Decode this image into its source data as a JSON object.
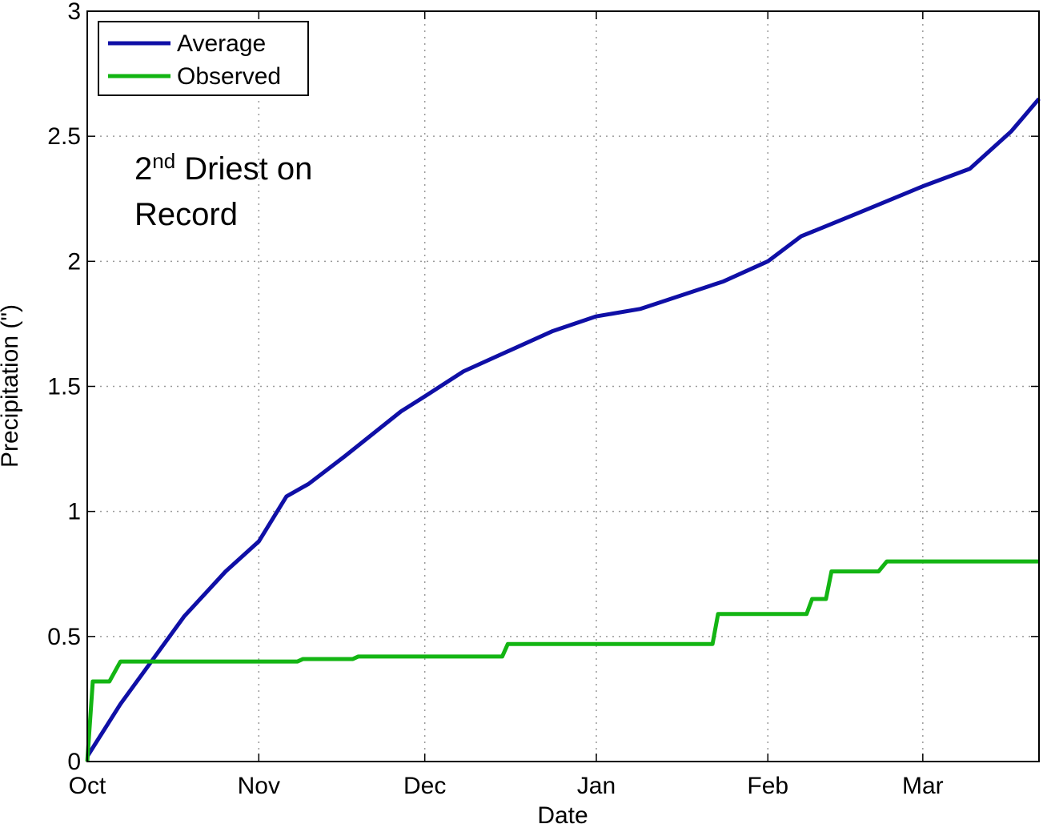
{
  "chart_data": {
    "type": "line",
    "xlabel": "Date",
    "ylabel": "Precipitation (\")",
    "annotation": {
      "number": "2",
      "suffix": "nd",
      "text": " Driest on",
      "line2": "Record"
    },
    "xlim": [
      0,
      172
    ],
    "xticks": [
      {
        "value": 0,
        "label": "Oct"
      },
      {
        "value": 31,
        "label": "Nov"
      },
      {
        "value": 61,
        "label": "Dec"
      },
      {
        "value": 92,
        "label": "Jan"
      },
      {
        "value": 123,
        "label": "Feb"
      },
      {
        "value": 151,
        "label": "Mar"
      }
    ],
    "ylim": [
      0,
      3
    ],
    "yticks": [
      0,
      0.5,
      1,
      1.5,
      2,
      2.5,
      3
    ],
    "grid": true,
    "legend": "upper left",
    "series": [
      {
        "name": "Average",
        "color": "#0f0fa6",
        "x": [
          0,
          6,
          17.5,
          25,
          31,
          36,
          40,
          46.5,
          56.7,
          61,
          68,
          84,
          92,
          100,
          115,
          123,
          129,
          139,
          151,
          159.5,
          167,
          172
        ],
        "values": [
          0.02,
          0.23,
          0.58,
          0.76,
          0.88,
          1.06,
          1.11,
          1.22,
          1.4,
          1.46,
          1.56,
          1.72,
          1.78,
          1.81,
          1.92,
          2.0,
          2.1,
          2.19,
          2.3,
          2.37,
          2.52,
          2.65
        ]
      },
      {
        "name": "Observed",
        "color": "#13b513",
        "x": [
          0,
          1,
          4,
          6,
          38,
          39,
          48,
          49,
          75,
          76,
          113,
          114,
          130,
          131,
          133.5,
          134.5,
          143,
          144.5,
          172
        ],
        "values": [
          0,
          0.32,
          0.32,
          0.4,
          0.4,
          0.41,
          0.41,
          0.42,
          0.42,
          0.47,
          0.47,
          0.59,
          0.59,
          0.65,
          0.65,
          0.76,
          0.76,
          0.8,
          0.8
        ]
      }
    ]
  }
}
